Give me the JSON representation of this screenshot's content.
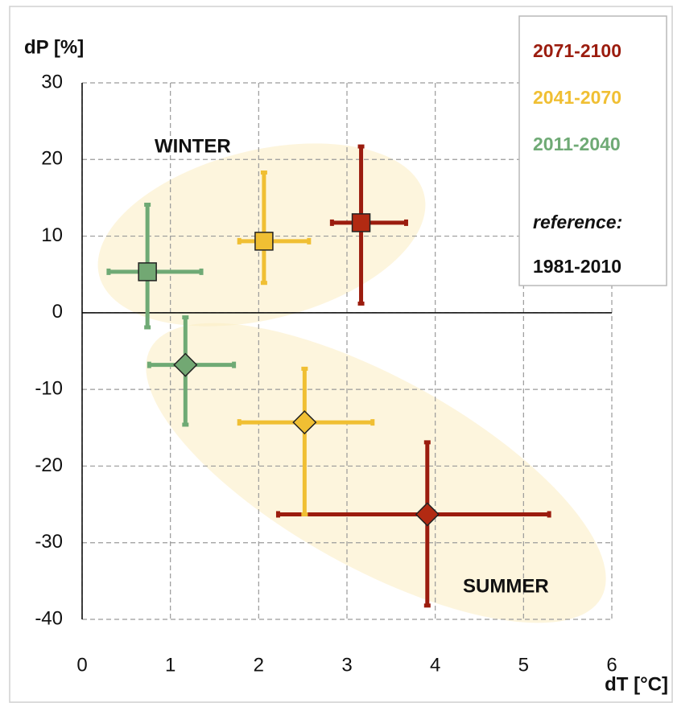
{
  "chart_data": {
    "type": "scatter",
    "x_label": "dT [°C]",
    "y_label": "dP [%]",
    "xlim": [
      0,
      6
    ],
    "xticks": [
      0,
      1,
      2,
      3,
      4,
      5,
      6
    ],
    "ylim": [
      -40,
      30
    ],
    "yticks": [
      -40,
      -30,
      -20,
      -10,
      0,
      10,
      20,
      30
    ],
    "grid": true,
    "annotations": [
      "WINTER",
      "SUMMER"
    ],
    "legend_position": "upper right",
    "legend_note": [
      "reference:",
      "1981-2010"
    ],
    "series": [
      {
        "name": "2071-2100",
        "color": "#9b1c0e",
        "marker_fill": "#b22a12",
        "markers": [
          "square",
          "diamond"
        ],
        "x": [
          3.16,
          3.91
        ],
        "values": [
          11.75,
          -26.3
        ],
        "xmin": [
          2.83,
          2.22
        ],
        "xmax": [
          3.67,
          5.29
        ],
        "ymin": [
          1.2,
          -38.2
        ],
        "ymax": [
          21.7,
          -16.9
        ]
      },
      {
        "name": "2041-2070",
        "color": "#f0bf33",
        "marker_fill": "#f0bf33",
        "markers": [
          "square",
          "diamond"
        ],
        "x": [
          2.06,
          2.52
        ],
        "values": [
          9.34,
          -14.3
        ],
        "xmin": [
          1.78,
          1.78
        ],
        "xmax": [
          2.57,
          3.29
        ],
        "ymin": [
          3.9,
          -26.3
        ],
        "ymax": [
          18.3,
          -7.3
        ]
      },
      {
        "name": "2011-2040",
        "color": "#6faa75",
        "marker_fill": "#72a873",
        "markers": [
          "square",
          "diamond"
        ],
        "x": [
          0.74,
          1.17
        ],
        "values": [
          5.35,
          -6.8
        ],
        "xmin": [
          0.3,
          0.76
        ],
        "xmax": [
          1.35,
          1.72
        ],
        "ymin": [
          -1.9,
          -14.6
        ],
        "ymax": [
          14.1,
          -0.6
        ]
      }
    ]
  }
}
